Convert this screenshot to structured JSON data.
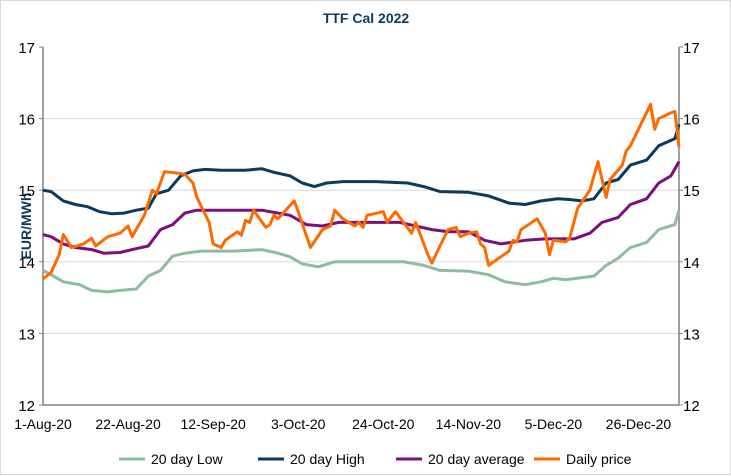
{
  "chart_data": {
    "type": "line",
    "title": "TTF Cal 2022",
    "ylabel": "EUR/MWh",
    "ylim": [
      12,
      17
    ],
    "yticks": [
      12,
      13,
      14,
      15,
      16,
      17
    ],
    "xlim": [
      "2020-08-01",
      "2021-01-05"
    ],
    "xticks": [
      {
        "date": "2020-08-01",
        "label": "1-Aug-20"
      },
      {
        "date": "2020-08-22",
        "label": "22-Aug-20"
      },
      {
        "date": "2020-09-12",
        "label": "12-Sep-20"
      },
      {
        "date": "2020-10-03",
        "label": "3-Oct-20"
      },
      {
        "date": "2020-10-24",
        "label": "24-Oct-20"
      },
      {
        "date": "2020-11-14",
        "label": "14-Nov-20"
      },
      {
        "date": "2020-12-05",
        "label": "5-Dec-20"
      },
      {
        "date": "2020-12-26",
        "label": "26-Dec-20"
      }
    ],
    "grid": true,
    "legend": "bottom",
    "series": [
      {
        "name": "20 day Low",
        "color": "#8fbc9f",
        "points": [
          [
            "2020-08-01",
            13.88
          ],
          [
            "2020-08-03",
            13.82
          ],
          [
            "2020-08-06",
            13.72
          ],
          [
            "2020-08-10",
            13.68
          ],
          [
            "2020-08-13",
            13.6
          ],
          [
            "2020-08-17",
            13.58
          ],
          [
            "2020-08-20",
            13.6
          ],
          [
            "2020-08-24",
            13.62
          ],
          [
            "2020-08-27",
            13.8
          ],
          [
            "2020-08-30",
            13.88
          ],
          [
            "2020-09-02",
            14.08
          ],
          [
            "2020-09-05",
            14.12
          ],
          [
            "2020-09-09",
            14.15
          ],
          [
            "2020-09-17",
            14.15
          ],
          [
            "2020-09-24",
            14.17
          ],
          [
            "2020-09-28",
            14.12
          ],
          [
            "2020-10-01",
            14.07
          ],
          [
            "2020-10-04",
            13.97
          ],
          [
            "2020-10-08",
            13.93
          ],
          [
            "2020-10-12",
            14.0
          ],
          [
            "2020-10-20",
            14.0
          ],
          [
            "2020-10-29",
            14.0
          ],
          [
            "2020-11-03",
            13.95
          ],
          [
            "2020-11-07",
            13.88
          ],
          [
            "2020-11-14",
            13.87
          ],
          [
            "2020-11-19",
            13.82
          ],
          [
            "2020-11-23",
            13.72
          ],
          [
            "2020-11-28",
            13.68
          ],
          [
            "2020-12-02",
            13.72
          ],
          [
            "2020-12-05",
            13.77
          ],
          [
            "2020-12-08",
            13.75
          ],
          [
            "2020-12-12",
            13.78
          ],
          [
            "2020-12-15",
            13.8
          ],
          [
            "2020-12-18",
            13.95
          ],
          [
            "2020-12-21",
            14.05
          ],
          [
            "2020-12-24",
            14.2
          ],
          [
            "2020-12-28",
            14.27
          ],
          [
            "2020-12-31",
            14.45
          ],
          [
            "2021-01-04",
            14.52
          ],
          [
            "2021-01-05",
            14.72
          ]
        ]
      },
      {
        "name": "20 day High",
        "color": "#0d3a5c",
        "points": [
          [
            "2020-08-01",
            15.0
          ],
          [
            "2020-08-03",
            14.98
          ],
          [
            "2020-08-06",
            14.85
          ],
          [
            "2020-08-09",
            14.8
          ],
          [
            "2020-08-12",
            14.77
          ],
          [
            "2020-08-15",
            14.7
          ],
          [
            "2020-08-18",
            14.67
          ],
          [
            "2020-08-21",
            14.68
          ],
          [
            "2020-08-24",
            14.72
          ],
          [
            "2020-08-27",
            14.75
          ],
          [
            "2020-08-29",
            14.95
          ],
          [
            "2020-09-01",
            15.0
          ],
          [
            "2020-09-04",
            15.2
          ],
          [
            "2020-09-07",
            15.27
          ],
          [
            "2020-09-10",
            15.29
          ],
          [
            "2020-09-14",
            15.28
          ],
          [
            "2020-09-20",
            15.28
          ],
          [
            "2020-09-24",
            15.3
          ],
          [
            "2020-09-27",
            15.25
          ],
          [
            "2020-10-01",
            15.2
          ],
          [
            "2020-10-04",
            15.1
          ],
          [
            "2020-10-07",
            15.05
          ],
          [
            "2020-10-10",
            15.1
          ],
          [
            "2020-10-14",
            15.12
          ],
          [
            "2020-10-22",
            15.12
          ],
          [
            "2020-10-30",
            15.1
          ],
          [
            "2020-11-03",
            15.05
          ],
          [
            "2020-11-07",
            14.98
          ],
          [
            "2020-11-14",
            14.97
          ],
          [
            "2020-11-19",
            14.92
          ],
          [
            "2020-11-24",
            14.82
          ],
          [
            "2020-11-28",
            14.8
          ],
          [
            "2020-12-02",
            14.85
          ],
          [
            "2020-12-06",
            14.88
          ],
          [
            "2020-12-09",
            14.87
          ],
          [
            "2020-12-12",
            14.85
          ],
          [
            "2020-12-15",
            14.88
          ],
          [
            "2020-12-18",
            15.1
          ],
          [
            "2020-12-21",
            15.15
          ],
          [
            "2020-12-24",
            15.35
          ],
          [
            "2020-12-28",
            15.42
          ],
          [
            "2020-12-31",
            15.62
          ],
          [
            "2021-01-04",
            15.72
          ],
          [
            "2021-01-05",
            15.92
          ]
        ]
      },
      {
        "name": "20 day average",
        "color": "#7b0f7e",
        "points": [
          [
            "2020-08-01",
            14.38
          ],
          [
            "2020-08-03",
            14.35
          ],
          [
            "2020-08-06",
            14.25
          ],
          [
            "2020-08-09",
            14.2
          ],
          [
            "2020-08-13",
            14.17
          ],
          [
            "2020-08-16",
            14.12
          ],
          [
            "2020-08-20",
            14.13
          ],
          [
            "2020-08-23",
            14.17
          ],
          [
            "2020-08-27",
            14.22
          ],
          [
            "2020-08-30",
            14.45
          ],
          [
            "2020-09-02",
            14.52
          ],
          [
            "2020-09-05",
            14.68
          ],
          [
            "2020-09-08",
            14.72
          ],
          [
            "2020-09-14",
            14.72
          ],
          [
            "2020-09-20",
            14.72
          ],
          [
            "2020-09-24",
            14.72
          ],
          [
            "2020-09-28",
            14.68
          ],
          [
            "2020-10-01",
            14.65
          ],
          [
            "2020-10-05",
            14.52
          ],
          [
            "2020-10-09",
            14.5
          ],
          [
            "2020-10-13",
            14.55
          ],
          [
            "2020-10-20",
            14.55
          ],
          [
            "2020-10-28",
            14.55
          ],
          [
            "2020-11-01",
            14.5
          ],
          [
            "2020-11-05",
            14.45
          ],
          [
            "2020-11-09",
            14.42
          ],
          [
            "2020-11-14",
            14.42
          ],
          [
            "2020-11-18",
            14.3
          ],
          [
            "2020-11-22",
            14.25
          ],
          [
            "2020-11-28",
            14.3
          ],
          [
            "2020-12-03",
            14.32
          ],
          [
            "2020-12-10",
            14.32
          ],
          [
            "2020-12-14",
            14.4
          ],
          [
            "2020-12-17",
            14.55
          ],
          [
            "2020-12-21",
            14.62
          ],
          [
            "2020-12-24",
            14.8
          ],
          [
            "2020-12-28",
            14.88
          ],
          [
            "2020-12-31",
            15.1
          ],
          [
            "2021-01-03",
            15.2
          ],
          [
            "2021-01-05",
            15.4
          ]
        ]
      },
      {
        "name": "Daily price",
        "color": "#ff6a00",
        "points": [
          [
            "2020-08-01",
            13.76
          ],
          [
            "2020-08-03",
            13.85
          ],
          [
            "2020-08-05",
            14.1
          ],
          [
            "2020-08-06",
            14.38
          ],
          [
            "2020-08-08",
            14.2
          ],
          [
            "2020-08-11",
            14.25
          ],
          [
            "2020-08-13",
            14.33
          ],
          [
            "2020-08-14",
            14.22
          ],
          [
            "2020-08-17",
            14.35
          ],
          [
            "2020-08-20",
            14.4
          ],
          [
            "2020-08-21",
            14.45
          ],
          [
            "2020-08-22",
            14.5
          ],
          [
            "2020-08-23",
            14.35
          ],
          [
            "2020-08-26",
            14.65
          ],
          [
            "2020-08-28",
            15.0
          ],
          [
            "2020-08-29",
            14.95
          ],
          [
            "2020-08-31",
            15.26
          ],
          [
            "2020-09-03",
            15.24
          ],
          [
            "2020-09-05",
            15.22
          ],
          [
            "2020-09-07",
            15.1
          ],
          [
            "2020-09-08",
            14.9
          ],
          [
            "2020-09-11",
            14.55
          ],
          [
            "2020-09-12",
            14.25
          ],
          [
            "2020-09-14",
            14.2
          ],
          [
            "2020-09-15",
            14.3
          ],
          [
            "2020-09-18",
            14.42
          ],
          [
            "2020-09-19",
            14.37
          ],
          [
            "2020-09-20",
            14.58
          ],
          [
            "2020-09-21",
            14.55
          ],
          [
            "2020-09-22",
            14.72
          ],
          [
            "2020-09-25",
            14.48
          ],
          [
            "2020-09-26",
            14.52
          ],
          [
            "2020-09-27",
            14.65
          ],
          [
            "2020-09-28",
            14.6
          ],
          [
            "2020-10-02",
            14.85
          ],
          [
            "2020-10-03",
            14.7
          ],
          [
            "2020-10-06",
            14.2
          ],
          [
            "2020-10-09",
            14.45
          ],
          [
            "2020-10-11",
            14.5
          ],
          [
            "2020-10-12",
            14.72
          ],
          [
            "2020-10-14",
            14.6
          ],
          [
            "2020-10-17",
            14.5
          ],
          [
            "2020-10-18",
            14.55
          ],
          [
            "2020-10-19",
            14.48
          ],
          [
            "2020-10-20",
            14.65
          ],
          [
            "2020-10-24",
            14.7
          ],
          [
            "2020-10-25",
            14.55
          ],
          [
            "2020-10-27",
            14.7
          ],
          [
            "2020-10-29",
            14.55
          ],
          [
            "2020-10-31",
            14.4
          ],
          [
            "2020-11-01",
            14.55
          ],
          [
            "2020-11-03",
            14.25
          ],
          [
            "2020-11-04",
            14.1
          ],
          [
            "2020-11-05",
            13.98
          ],
          [
            "2020-11-06",
            14.1
          ],
          [
            "2020-11-07",
            14.22
          ],
          [
            "2020-11-09",
            14.45
          ],
          [
            "2020-11-11",
            14.48
          ],
          [
            "2020-11-12",
            14.35
          ],
          [
            "2020-11-14",
            14.4
          ],
          [
            "2020-11-16",
            14.42
          ],
          [
            "2020-11-17",
            14.25
          ],
          [
            "2020-11-18",
            14.2
          ],
          [
            "2020-11-19",
            13.95
          ],
          [
            "2020-11-24",
            14.15
          ],
          [
            "2020-11-25",
            14.3
          ],
          [
            "2020-11-26",
            14.28
          ],
          [
            "2020-11-27",
            14.45
          ],
          [
            "2020-12-01",
            14.6
          ],
          [
            "2020-12-02",
            14.5
          ],
          [
            "2020-12-03",
            14.4
          ],
          [
            "2020-12-04",
            14.1
          ],
          [
            "2020-12-05",
            14.3
          ],
          [
            "2020-12-08",
            14.28
          ],
          [
            "2020-12-09",
            14.33
          ],
          [
            "2020-12-11",
            14.75
          ],
          [
            "2020-12-14",
            15.0
          ],
          [
            "2020-12-16",
            15.4
          ],
          [
            "2020-12-18",
            14.9
          ],
          [
            "2020-12-19",
            15.15
          ],
          [
            "2020-12-22",
            15.35
          ],
          [
            "2020-12-23",
            15.55
          ],
          [
            "2020-12-24",
            15.62
          ],
          [
            "2020-12-29",
            16.2
          ],
          [
            "2020-12-30",
            15.85
          ],
          [
            "2020-12-31",
            16.0
          ],
          [
            "2021-01-03",
            16.08
          ],
          [
            "2021-01-04",
            16.1
          ],
          [
            "2021-01-05",
            15.6
          ]
        ]
      }
    ]
  }
}
